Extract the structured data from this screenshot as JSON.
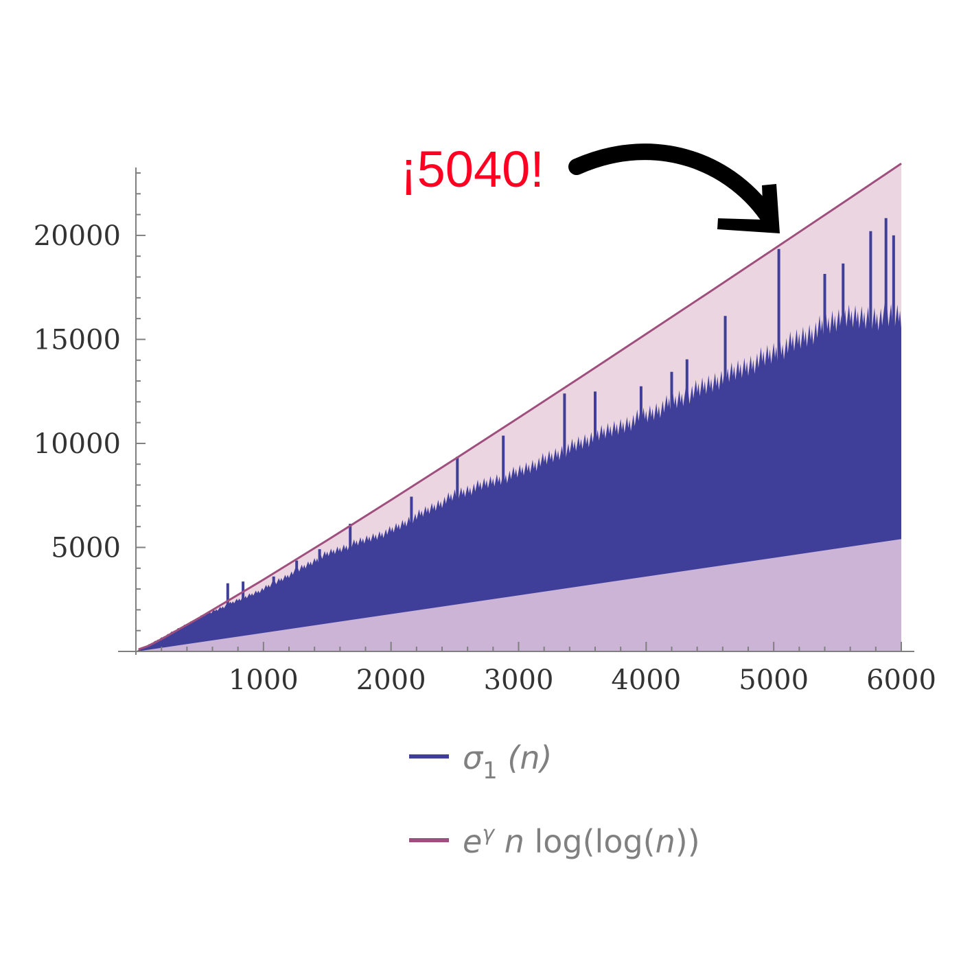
{
  "chart_data": {
    "type": "area",
    "title": "",
    "xlabel": "",
    "ylabel": "",
    "xlim": [
      0,
      6000
    ],
    "ylim": [
      0,
      23000
    ],
    "x_ticks": [
      1000,
      2000,
      3000,
      4000,
      5000,
      6000
    ],
    "x_tick_labels": [
      "1000",
      "2000",
      "3000",
      "4000",
      "5000",
      "6000"
    ],
    "y_ticks": [
      5000,
      10000,
      15000,
      20000
    ],
    "y_tick_labels": [
      "5000",
      "10000",
      "15000",
      "20000"
    ],
    "grid": false,
    "legend_position": "bottom",
    "annotation": {
      "text": "¡5040!",
      "points_to": {
        "x": 5040,
        "y": 19344
      }
    },
    "series": [
      {
        "name": "σ1 (n)",
        "legend": {
          "main": "σ",
          "sub": "1",
          "rest": " (n)"
        },
        "color": "#3f3f9a",
        "fill_to_axis_color": "#cbb4d6",
        "lower_envelope": {
          "x": [
            1,
            6000
          ],
          "y": [
            1,
            5400
          ]
        },
        "typical_upper": {
          "x": [
            500,
            1000,
            1500,
            2000,
            2500,
            3000,
            3500,
            4000,
            4500,
            5000,
            5500,
            6000
          ],
          "y": [
            1750,
            3200,
            5000,
            6200,
            8000,
            9200,
            10700,
            12100,
            13700,
            15300,
            17000,
            17200
          ]
        },
        "notable_peaks": {
          "x": [
            720,
            840,
            1080,
            1260,
            1440,
            1680,
            2160,
            2520,
            2880,
            3360,
            3600,
            3960,
            4200,
            4320,
            4620,
            5040,
            5400,
            5544,
            5760,
            5880,
            5940
          ],
          "y": [
            3276,
            3360,
            3600,
            4368,
            4914,
            6138,
            7440,
            9360,
            10374,
            12400,
            12493,
            12744,
            13440,
            14040,
            16128,
            19344,
            18150,
            18648,
            20202,
            20832,
            20000
          ]
        }
      },
      {
        "name": "e^γ n log(log(n))",
        "legend": {
          "base": "e",
          "sup": "γ",
          "rest_italic": " n",
          "rest": " log(log(",
          "arg": "n",
          "close": "))"
        },
        "color": "#9e4f7d",
        "fill_above_color": "#ead5e1",
        "formula_coefficient": 1.781072418,
        "x": [
          20,
          100,
          200,
          500,
          1000,
          1500,
          2000,
          2500,
          3000,
          3500,
          4000,
          4500,
          5000,
          5500,
          6000
        ],
        "y": [
          98,
          272,
          593,
          1626,
          3453,
          5345,
          7279,
          9244,
          11232,
          13238,
          15260,
          17293,
          19338,
          21391,
          23452
        ]
      }
    ]
  },
  "colors": {
    "sigma_fill": "#3f3f9a",
    "bound_line": "#9e4f7d",
    "bound_fill": "#ead5e1",
    "below_fill": "#cbb4d6",
    "axis": "#7f7f7f",
    "annotation": "#ff0022",
    "arrow": "#000000"
  }
}
